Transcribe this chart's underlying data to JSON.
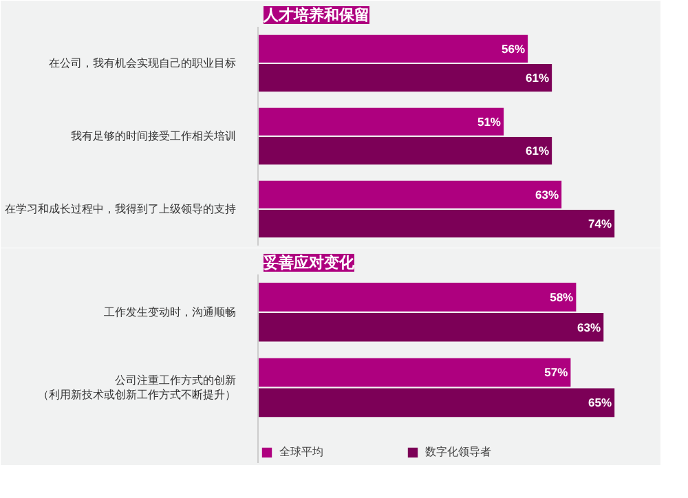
{
  "chart_data": [
    {
      "type": "bar",
      "orientation": "horizontal",
      "title": "人才培养和保留",
      "categories": [
        "在公司，我有机会实现自己的职业目标",
        "我有足够的时间接受工作相关培训",
        "在学习和成长过程中，我得到了上级领导的支持"
      ],
      "series": [
        {
          "color": "#ae007f",
          "values": [
            56,
            51,
            63
          ],
          "value_labels": [
            "56%",
            "51%",
            "63%"
          ]
        },
        {
          "color": "#7c0057",
          "values": [
            61,
            61,
            74
          ],
          "value_labels": [
            "61%",
            "61%",
            "74%"
          ]
        }
      ],
      "legend": false,
      "grid": false,
      "tick_labels": "y"
    },
    {
      "type": "bar",
      "orientation": "horizontal",
      "title": "妥善应对变化",
      "categories": [
        "工作发生变动时，沟通顺畅",
        "公司注重工作方式的创新（利用新技术或创新工作方式不断提升）"
      ],
      "series": [
        {
          "name": "全球平均",
          "color": "#ae007f",
          "values": [
            58,
            57
          ],
          "value_labels": [
            "58%",
            "57%"
          ]
        },
        {
          "name": "数字化领导者",
          "color": "#7c0057",
          "values": [
            63,
            65
          ],
          "value_labels": [
            "63%",
            "65%"
          ]
        }
      ],
      "legend": "bottom",
      "grid": false,
      "tick_labels": "y"
    }
  ]
}
